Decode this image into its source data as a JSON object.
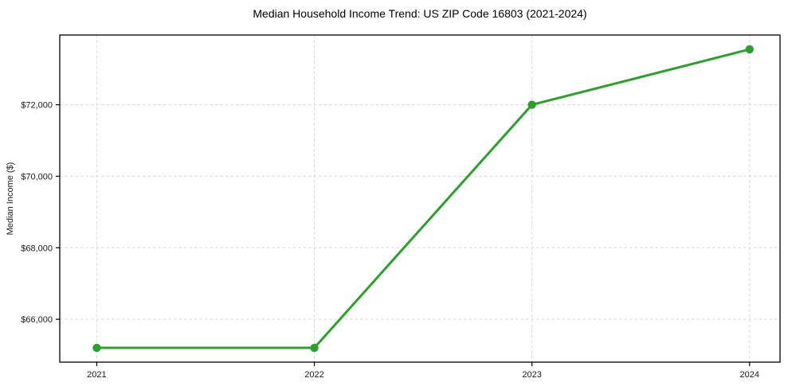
{
  "chart_data": {
    "type": "line",
    "title": "Median Household Income Trend: US ZIP Code 16803 (2021-2024)",
    "xlabel": "",
    "ylabel": "Median Income ($)",
    "x": [
      2021,
      2022,
      2023,
      2024
    ],
    "values": [
      65200,
      65200,
      72000,
      73550
    ],
    "xlim": [
      2020.83,
      2024.14
    ],
    "ylim": [
      64800,
      73950
    ],
    "xticks": [
      {
        "value": 2021,
        "label": "2021"
      },
      {
        "value": 2022,
        "label": "2022"
      },
      {
        "value": 2023,
        "label": "2023"
      },
      {
        "value": 2024,
        "label": "2024"
      }
    ],
    "yticks": [
      {
        "value": 66000,
        "label": "$66,000"
      },
      {
        "value": 68000,
        "label": "$68,000"
      },
      {
        "value": 70000,
        "label": "$70,000"
      },
      {
        "value": 72000,
        "label": "$72,000"
      }
    ],
    "grid": true,
    "grid_style": "dashed",
    "legend": "none",
    "colors": {
      "line": "#2ca02c",
      "marker": "#2ca02c",
      "grid": "#d8d8d8",
      "spine": "#000000",
      "text": "#1a1a1a",
      "background": "#ffffff"
    }
  }
}
